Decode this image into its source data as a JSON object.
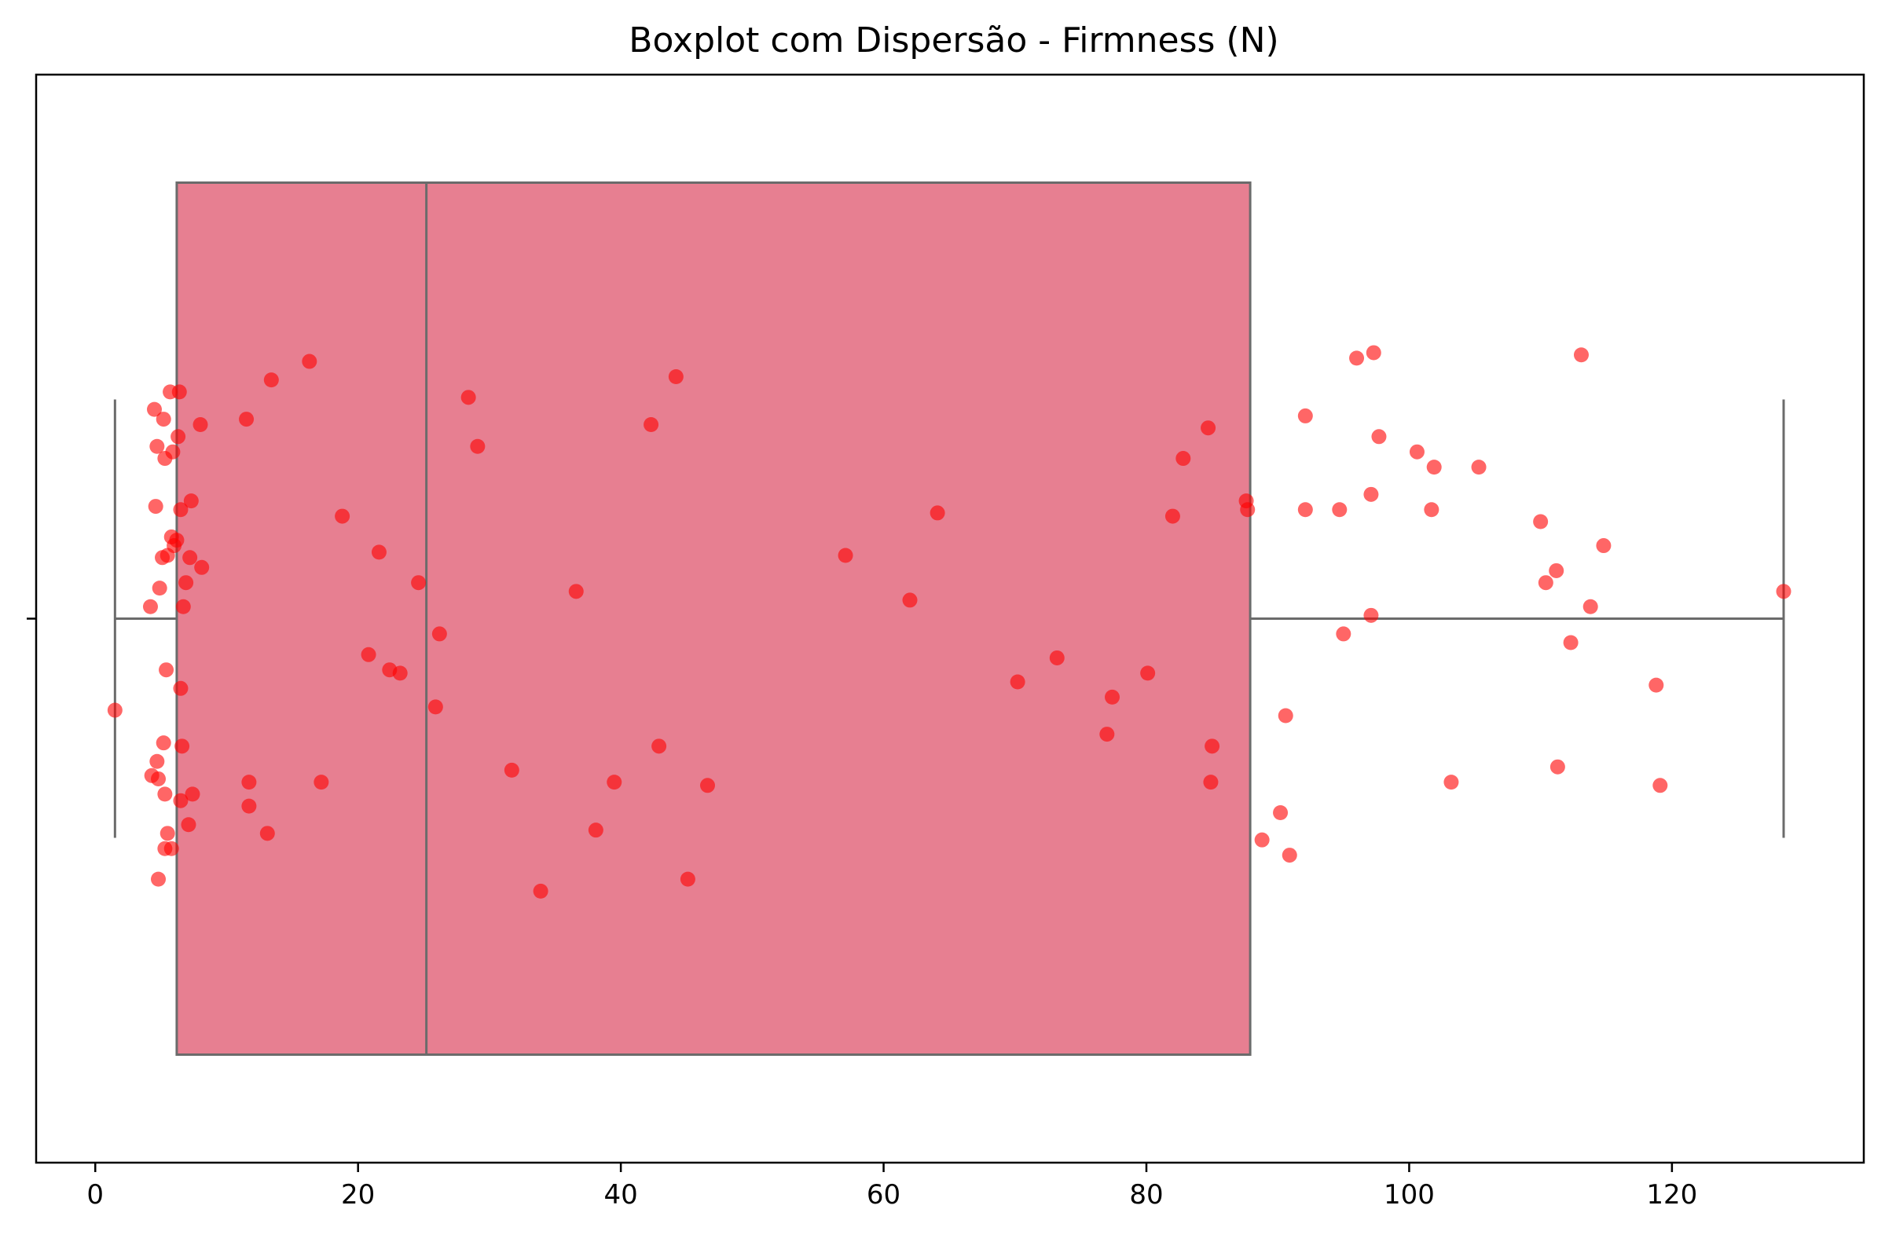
{
  "chart_data": {
    "type": "box",
    "title": "Boxplot com Dispersão - Firmness (N)",
    "xlabel": "",
    "ylabel": "",
    "xlim": [
      -4.5,
      134.6
    ],
    "x_ticks": [
      0,
      20,
      40,
      60,
      80,
      100,
      120
    ],
    "grid": false,
    "box": {
      "whisker_low": 1.5,
      "q1": 6.2,
      "median": 25.2,
      "q3": 87.9,
      "whisker_high": 128.5,
      "fill_color": "#e77f91",
      "line_color": "#6b6b6b"
    },
    "points_color": "#ff0000",
    "points": [
      {
        "x": 1.5,
        "jitter": -0.084
      },
      {
        "x": 4.5,
        "jitter": 0.192
      },
      {
        "x": 4.7,
        "jitter": 0.158
      },
      {
        "x": 5.2,
        "jitter": 0.183
      },
      {
        "x": 5.7,
        "jitter": 0.208
      },
      {
        "x": 6.4,
        "jitter": 0.208
      },
      {
        "x": 6.3,
        "jitter": 0.167
      },
      {
        "x": 5.9,
        "jitter": 0.153
      },
      {
        "x": 5.3,
        "jitter": 0.147
      },
      {
        "x": 8.0,
        "jitter": 0.178
      },
      {
        "x": 7.3,
        "jitter": 0.108
      },
      {
        "x": 6.5,
        "jitter": 0.1
      },
      {
        "x": 4.6,
        "jitter": 0.103
      },
      {
        "x": 6.2,
        "jitter": 0.072
      },
      {
        "x": 6.0,
        "jitter": 0.067
      },
      {
        "x": 5.8,
        "jitter": 0.075
      },
      {
        "x": 5.5,
        "jitter": 0.058
      },
      {
        "x": 5.1,
        "jitter": 0.056
      },
      {
        "x": 7.2,
        "jitter": 0.056
      },
      {
        "x": 8.1,
        "jitter": 0.047
      },
      {
        "x": 6.9,
        "jitter": 0.033
      },
      {
        "x": 4.9,
        "jitter": 0.028
      },
      {
        "x": 6.7,
        "jitter": 0.011
      },
      {
        "x": 4.2,
        "jitter": 0.011
      },
      {
        "x": 5.4,
        "jitter": -0.047
      },
      {
        "x": 6.5,
        "jitter": -0.064
      },
      {
        "x": 6.6,
        "jitter": -0.117
      },
      {
        "x": 5.2,
        "jitter": -0.114
      },
      {
        "x": 4.7,
        "jitter": -0.131
      },
      {
        "x": 4.3,
        "jitter": -0.144
      },
      {
        "x": 4.8,
        "jitter": -0.147
      },
      {
        "x": 5.3,
        "jitter": -0.161
      },
      {
        "x": 6.5,
        "jitter": -0.167
      },
      {
        "x": 7.4,
        "jitter": -0.161
      },
      {
        "x": 7.1,
        "jitter": -0.189
      },
      {
        "x": 5.5,
        "jitter": -0.197
      },
      {
        "x": 5.8,
        "jitter": -0.211
      },
      {
        "x": 5.3,
        "jitter": -0.211
      },
      {
        "x": 4.8,
        "jitter": -0.239
      },
      {
        "x": 11.5,
        "jitter": 0.183
      },
      {
        "x": 13.4,
        "jitter": 0.219
      },
      {
        "x": 16.3,
        "jitter": 0.236
      },
      {
        "x": 11.7,
        "jitter": -0.15
      },
      {
        "x": 11.7,
        "jitter": -0.172
      },
      {
        "x": 13.1,
        "jitter": -0.197
      },
      {
        "x": 17.2,
        "jitter": -0.15
      },
      {
        "x": 18.8,
        "jitter": 0.094
      },
      {
        "x": 21.6,
        "jitter": 0.061
      },
      {
        "x": 24.6,
        "jitter": 0.033
      },
      {
        "x": 20.8,
        "jitter": -0.033
      },
      {
        "x": 22.4,
        "jitter": -0.047
      },
      {
        "x": 23.2,
        "jitter": -0.05
      },
      {
        "x": 26.2,
        "jitter": -0.014
      },
      {
        "x": 25.9,
        "jitter": -0.081
      },
      {
        "x": 28.4,
        "jitter": 0.203
      },
      {
        "x": 29.1,
        "jitter": 0.158
      },
      {
        "x": 31.7,
        "jitter": -0.139
      },
      {
        "x": 33.9,
        "jitter": -0.25
      },
      {
        "x": 36.6,
        "jitter": 0.025
      },
      {
        "x": 38.1,
        "jitter": -0.194
      },
      {
        "x": 39.5,
        "jitter": -0.15
      },
      {
        "x": 42.3,
        "jitter": 0.178
      },
      {
        "x": 44.2,
        "jitter": 0.222
      },
      {
        "x": 42.9,
        "jitter": -0.117
      },
      {
        "x": 45.1,
        "jitter": -0.239
      },
      {
        "x": 46.6,
        "jitter": -0.153
      },
      {
        "x": 57.1,
        "jitter": 0.058
      },
      {
        "x": 62.0,
        "jitter": 0.017
      },
      {
        "x": 64.1,
        "jitter": 0.097
      },
      {
        "x": 70.2,
        "jitter": -0.058
      },
      {
        "x": 73.2,
        "jitter": -0.036
      },
      {
        "x": 77.4,
        "jitter": -0.072
      },
      {
        "x": 77.0,
        "jitter": -0.106
      },
      {
        "x": 80.1,
        "jitter": -0.05
      },
      {
        "x": 82.0,
        "jitter": 0.094
      },
      {
        "x": 82.8,
        "jitter": 0.147
      },
      {
        "x": 84.7,
        "jitter": 0.175
      },
      {
        "x": 85.0,
        "jitter": -0.117
      },
      {
        "x": 84.9,
        "jitter": -0.15
      },
      {
        "x": 87.6,
        "jitter": 0.108
      },
      {
        "x": 87.7,
        "jitter": 0.1
      },
      {
        "x": 88.8,
        "jitter": -0.203
      },
      {
        "x": 90.2,
        "jitter": -0.178
      },
      {
        "x": 90.6,
        "jitter": -0.089
      },
      {
        "x": 90.9,
        "jitter": -0.217
      },
      {
        "x": 92.1,
        "jitter": 0.186
      },
      {
        "x": 92.1,
        "jitter": 0.1
      },
      {
        "x": 94.7,
        "jitter": 0.1
      },
      {
        "x": 95.0,
        "jitter": -0.014
      },
      {
        "x": 96.0,
        "jitter": 0.239
      },
      {
        "x": 97.3,
        "jitter": 0.244
      },
      {
        "x": 97.1,
        "jitter": 0.114
      },
      {
        "x": 97.7,
        "jitter": 0.167
      },
      {
        "x": 97.1,
        "jitter": 0.003
      },
      {
        "x": 100.6,
        "jitter": 0.153
      },
      {
        "x": 101.9,
        "jitter": 0.139
      },
      {
        "x": 101.7,
        "jitter": 0.1
      },
      {
        "x": 103.2,
        "jitter": -0.15
      },
      {
        "x": 105.3,
        "jitter": 0.139
      },
      {
        "x": 110.0,
        "jitter": 0.089
      },
      {
        "x": 110.4,
        "jitter": 0.033
      },
      {
        "x": 111.2,
        "jitter": 0.044
      },
      {
        "x": 111.3,
        "jitter": -0.136
      },
      {
        "x": 112.3,
        "jitter": -0.022
      },
      {
        "x": 113.1,
        "jitter": 0.242
      },
      {
        "x": 113.8,
        "jitter": 0.011
      },
      {
        "x": 114.8,
        "jitter": 0.067
      },
      {
        "x": 118.8,
        "jitter": -0.061
      },
      {
        "x": 119.1,
        "jitter": -0.153
      },
      {
        "x": 128.5,
        "jitter": 0.025
      }
    ]
  }
}
